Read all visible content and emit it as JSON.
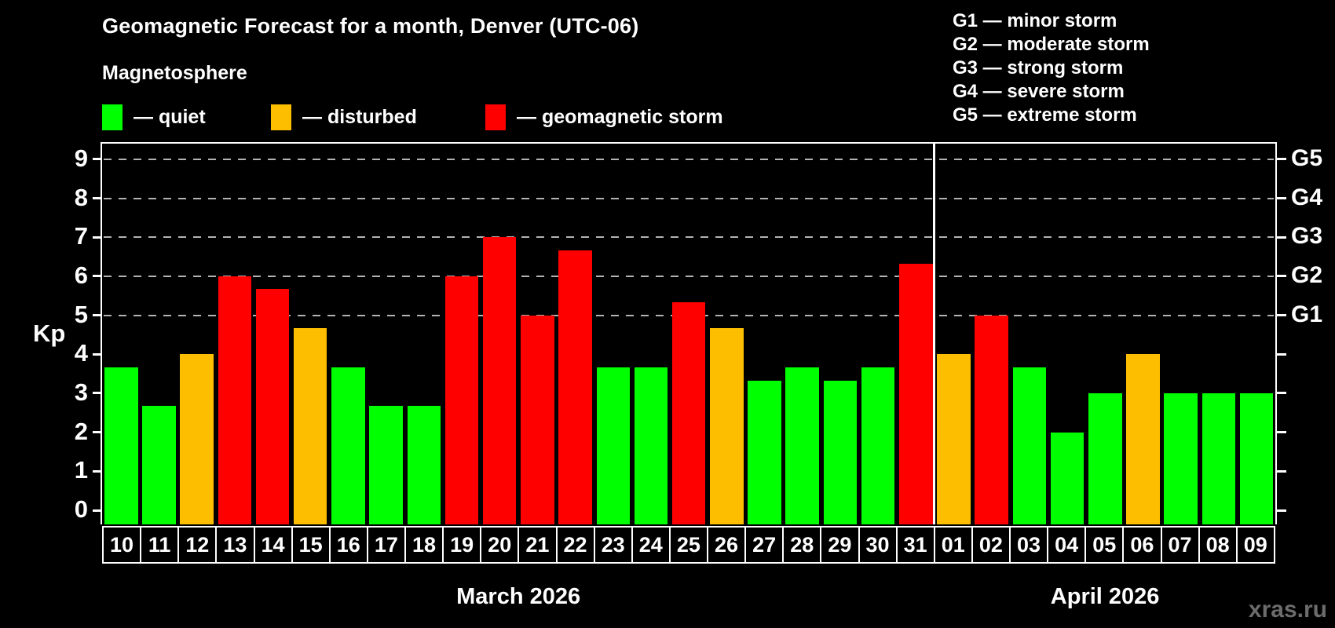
{
  "title": "Geomagnetic Forecast for a month, Denver (UTC-06)",
  "subtitle": "Magnetosphere",
  "legend": {
    "items": [
      {
        "label": "— quiet",
        "color": "#00ff00",
        "status": "quiet"
      },
      {
        "label": "— disturbed",
        "color": "#fdbe00",
        "status": "disturbed"
      },
      {
        "label": "— geomagnetic storm",
        "color": "#ff0000",
        "status": "storm"
      }
    ]
  },
  "g_scale_legend": [
    "G1 — minor storm",
    "G2 — moderate storm",
    "G3 — strong storm",
    "G4 — severe storm",
    "G5 — extreme storm"
  ],
  "watermark": "xras.ru",
  "chart_data": {
    "type": "bar",
    "title": "Geomagnetic Forecast for a month, Denver (UTC-06)",
    "ylabel": "Kp",
    "ylim": [
      0,
      9.4
    ],
    "yticks": [
      0,
      1,
      2,
      3,
      4,
      5,
      6,
      7,
      8,
      9
    ],
    "grid": "horizontal dashed lines at G-storm levels only",
    "gridlines_at_kp": [
      5,
      6,
      7,
      8,
      9
    ],
    "right_axis": [
      {
        "label": "G1",
        "kp": 5
      },
      {
        "label": "G2",
        "kp": 6
      },
      {
        "label": "G3",
        "kp": 7
      },
      {
        "label": "G4",
        "kp": 8
      },
      {
        "label": "G5",
        "kp": 9
      }
    ],
    "months": [
      {
        "label": "March 2026",
        "short": "mar",
        "count": 22
      },
      {
        "label": "April 2026",
        "short": "apr",
        "count": 9
      }
    ],
    "categories": [
      "10",
      "11",
      "12",
      "13",
      "14",
      "15",
      "16",
      "17",
      "18",
      "19",
      "20",
      "21",
      "22",
      "23",
      "24",
      "25",
      "26",
      "27",
      "28",
      "29",
      "30",
      "31",
      "01",
      "02",
      "03",
      "04",
      "05",
      "06",
      "07",
      "08",
      "09"
    ],
    "values": [
      3.67,
      2.67,
      4.0,
      6.0,
      5.67,
      4.67,
      3.67,
      2.67,
      2.67,
      6.0,
      7.0,
      5.0,
      6.67,
      3.67,
      3.67,
      5.33,
      4.67,
      3.33,
      3.67,
      3.33,
      3.67,
      6.33,
      4.0,
      5.0,
      3.67,
      2.0,
      3.0,
      4.0,
      3.0,
      3.0,
      3.0
    ],
    "status": [
      "quiet",
      "quiet",
      "disturbed",
      "storm",
      "storm",
      "disturbed",
      "quiet",
      "quiet",
      "quiet",
      "storm",
      "storm",
      "storm",
      "storm",
      "quiet",
      "quiet",
      "storm",
      "disturbed",
      "quiet",
      "quiet",
      "quiet",
      "quiet",
      "storm",
      "disturbed",
      "storm",
      "quiet",
      "quiet",
      "quiet",
      "disturbed",
      "quiet",
      "quiet",
      "quiet"
    ],
    "colors": {
      "quiet": "#00ff00",
      "disturbed": "#fdbe00",
      "storm": "#ff0000"
    }
  }
}
